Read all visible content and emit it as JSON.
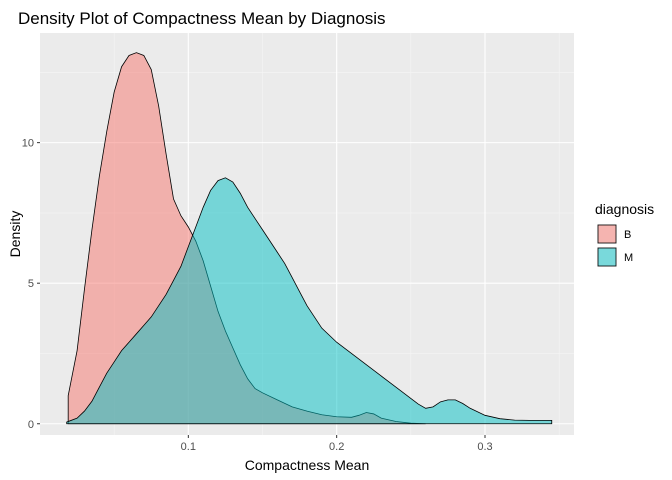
{
  "chart_data": {
    "type": "area",
    "title": "Density Plot of Compactness Mean by Diagnosis",
    "xlabel": "Compactness Mean",
    "ylabel": "Density",
    "xlim": [
      0.0,
      0.36
    ],
    "ylim": [
      -0.4,
      13.9
    ],
    "x_ticks": [
      {
        "value": 0.1,
        "label": "0.1"
      },
      {
        "value": 0.2,
        "label": "0.2"
      },
      {
        "value": 0.3,
        "label": "0.3"
      }
    ],
    "y_ticks": [
      {
        "value": 0,
        "label": "0"
      },
      {
        "value": 5,
        "label": "5"
      },
      {
        "value": 10,
        "label": "10"
      }
    ],
    "grid": true,
    "legend": {
      "title": "diagnosis",
      "position": "right"
    },
    "series": [
      {
        "name": "B",
        "color": "#F8766D",
        "points": [
          [
            0.019,
            1.0
          ],
          [
            0.025,
            2.6
          ],
          [
            0.03,
            4.8
          ],
          [
            0.035,
            6.9
          ],
          [
            0.04,
            8.8
          ],
          [
            0.045,
            10.4
          ],
          [
            0.05,
            11.8
          ],
          [
            0.055,
            12.7
          ],
          [
            0.06,
            13.1
          ],
          [
            0.065,
            13.2
          ],
          [
            0.07,
            13.1
          ],
          [
            0.075,
            12.6
          ],
          [
            0.08,
            11.3
          ],
          [
            0.085,
            9.6
          ],
          [
            0.09,
            8.0
          ],
          [
            0.095,
            7.4
          ],
          [
            0.1,
            7.0
          ],
          [
            0.105,
            6.5
          ],
          [
            0.11,
            5.8
          ],
          [
            0.115,
            4.9
          ],
          [
            0.12,
            4.0
          ],
          [
            0.125,
            3.3
          ],
          [
            0.13,
            2.7
          ],
          [
            0.135,
            2.1
          ],
          [
            0.14,
            1.6
          ],
          [
            0.145,
            1.25
          ],
          [
            0.15,
            1.1
          ],
          [
            0.16,
            0.85
          ],
          [
            0.17,
            0.6
          ],
          [
            0.18,
            0.45
          ],
          [
            0.19,
            0.32
          ],
          [
            0.2,
            0.25
          ],
          [
            0.21,
            0.23
          ],
          [
            0.215,
            0.3
          ],
          [
            0.22,
            0.4
          ],
          [
            0.225,
            0.35
          ],
          [
            0.23,
            0.2
          ],
          [
            0.24,
            0.08
          ],
          [
            0.25,
            0.02
          ],
          [
            0.26,
            0.0
          ]
        ]
      },
      {
        "name": "M",
        "color": "#00BFC4",
        "points": [
          [
            0.018,
            0.06
          ],
          [
            0.025,
            0.2
          ],
          [
            0.03,
            0.45
          ],
          [
            0.035,
            0.8
          ],
          [
            0.04,
            1.3
          ],
          [
            0.045,
            1.8
          ],
          [
            0.05,
            2.2
          ],
          [
            0.055,
            2.6
          ],
          [
            0.06,
            2.9
          ],
          [
            0.065,
            3.2
          ],
          [
            0.07,
            3.5
          ],
          [
            0.075,
            3.8
          ],
          [
            0.08,
            4.2
          ],
          [
            0.085,
            4.6
          ],
          [
            0.09,
            5.1
          ],
          [
            0.095,
            5.6
          ],
          [
            0.1,
            6.3
          ],
          [
            0.105,
            7.0
          ],
          [
            0.11,
            7.7
          ],
          [
            0.115,
            8.3
          ],
          [
            0.12,
            8.65
          ],
          [
            0.125,
            8.75
          ],
          [
            0.13,
            8.6
          ],
          [
            0.135,
            8.2
          ],
          [
            0.14,
            7.7
          ],
          [
            0.145,
            7.3
          ],
          [
            0.15,
            6.9
          ],
          [
            0.155,
            6.5
          ],
          [
            0.16,
            6.1
          ],
          [
            0.165,
            5.7
          ],
          [
            0.17,
            5.2
          ],
          [
            0.175,
            4.7
          ],
          [
            0.18,
            4.2
          ],
          [
            0.185,
            3.8
          ],
          [
            0.19,
            3.4
          ],
          [
            0.2,
            2.9
          ],
          [
            0.21,
            2.5
          ],
          [
            0.22,
            2.1
          ],
          [
            0.23,
            1.7
          ],
          [
            0.24,
            1.3
          ],
          [
            0.25,
            0.9
          ],
          [
            0.255,
            0.7
          ],
          [
            0.26,
            0.55
          ],
          [
            0.265,
            0.6
          ],
          [
            0.27,
            0.78
          ],
          [
            0.275,
            0.85
          ],
          [
            0.28,
            0.85
          ],
          [
            0.285,
            0.72
          ],
          [
            0.29,
            0.55
          ],
          [
            0.3,
            0.3
          ],
          [
            0.31,
            0.18
          ],
          [
            0.32,
            0.13
          ],
          [
            0.33,
            0.12
          ],
          [
            0.345,
            0.12
          ]
        ]
      }
    ]
  }
}
